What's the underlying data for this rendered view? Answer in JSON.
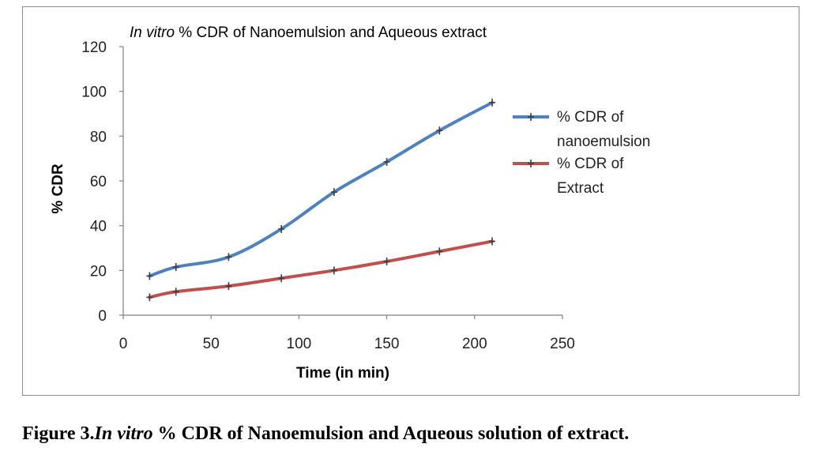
{
  "chart_data": {
    "type": "line",
    "title_italic": "In vitro",
    "title_rest": " % CDR of Nanoemulsion and Aqueous extract",
    "xlabel": "Time (in min)",
    "ylabel": "% CDR",
    "xlim": [
      0,
      250
    ],
    "ylim": [
      0,
      120
    ],
    "xticks": [
      0,
      50,
      100,
      150,
      200,
      250
    ],
    "yticks": [
      0,
      20,
      40,
      60,
      80,
      100,
      120
    ],
    "grid": false,
    "legend_position": "right",
    "series": [
      {
        "name": "% CDR of nanoemulsion",
        "legend_lines": [
          "% CDR of",
          "nanoemulsion"
        ],
        "color": "#4F81BD",
        "x": [
          15,
          30,
          60,
          90,
          120,
          150,
          180,
          210
        ],
        "y": [
          17.5,
          21.5,
          26,
          38.5,
          55,
          68.5,
          82.5,
          95
        ]
      },
      {
        "name": "% CDR of Extract",
        "legend_lines": [
          "% CDR of",
          "Extract"
        ],
        "color": "#C0504D",
        "x": [
          15,
          30,
          60,
          90,
          120,
          150,
          180,
          210
        ],
        "y": [
          8,
          10.5,
          13,
          16.5,
          20,
          24,
          28.5,
          33
        ]
      }
    ]
  },
  "caption": {
    "prefix": "Figure 3.",
    "italic": "In vitro",
    "rest": "  % CDR of Nanoemulsion and Aqueous solution of extract."
  }
}
